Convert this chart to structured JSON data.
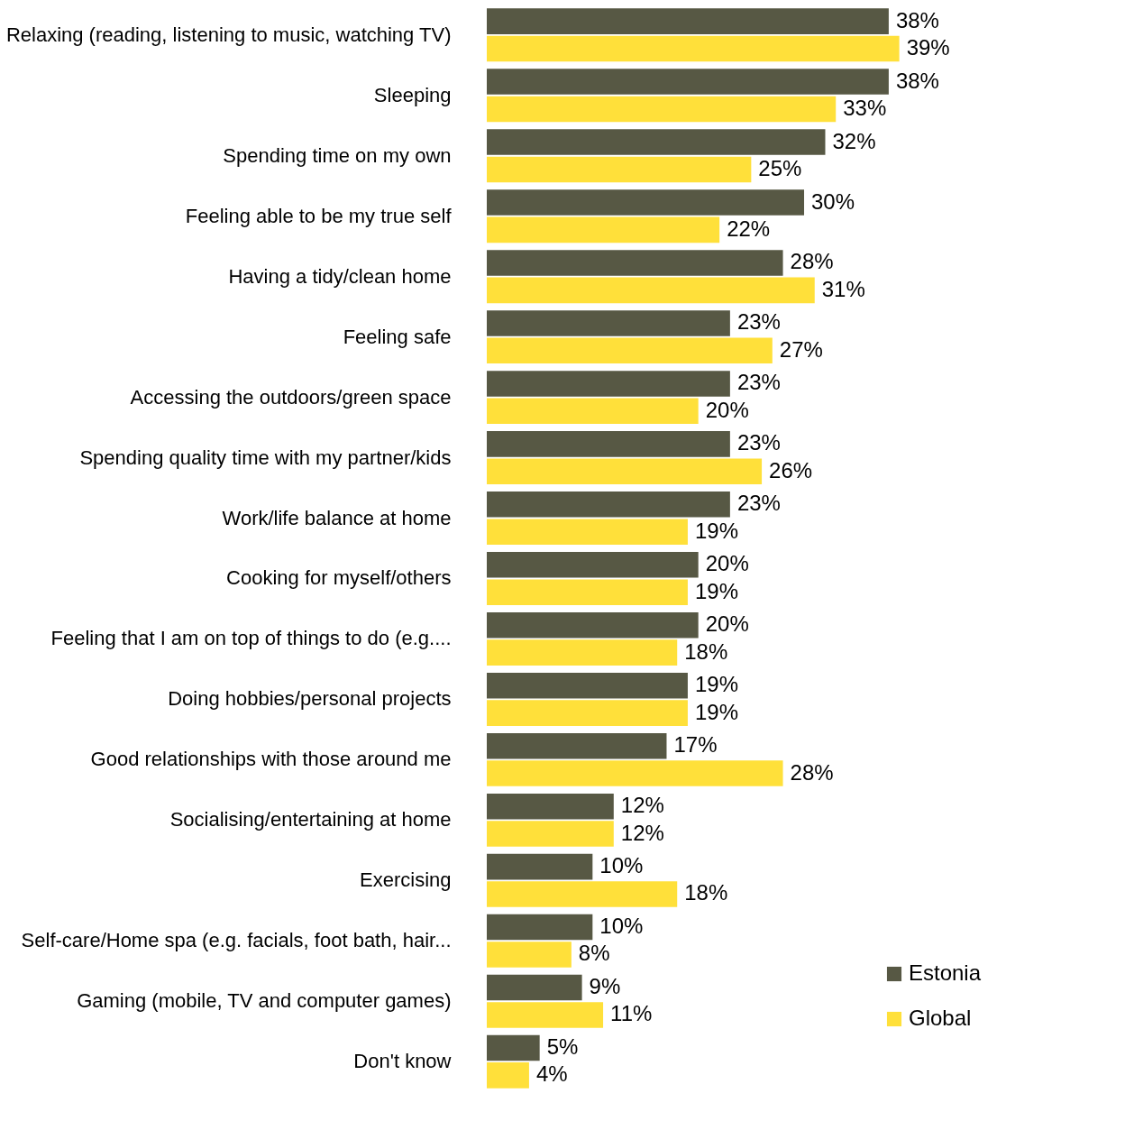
{
  "chart_data": {
    "type": "bar",
    "orientation": "horizontal",
    "legend": "bottom right",
    "grid": false,
    "categories": [
      "Relaxing (reading, listening to music, watching TV)",
      "Sleeping",
      "Spending time on my own",
      "Feeling able to be my true self",
      "Having a tidy/clean home",
      "Feeling safe",
      "Accessing the outdoors/green space",
      "Spending quality time with my partner/kids",
      "Work/life balance at home",
      "Cooking for myself/others",
      "Feeling that I am on top of things to do (e.g....",
      "Doing hobbies/personal projects",
      "Good relationships with those around me",
      "Socialising/entertaining at home",
      "Exercising",
      "Self-care/Home spa (e.g. facials, foot bath, hair...",
      "Gaming (mobile, TV and computer games)",
      "Don't know"
    ],
    "series": [
      {
        "name": "Estonia",
        "color": "#575844",
        "values": [
          38,
          38,
          32,
          30,
          28,
          23,
          23,
          23,
          23,
          20,
          20,
          19,
          17,
          12,
          10,
          10,
          9,
          5
        ],
        "value_labels": [
          "38%",
          "38%",
          "32%",
          "30%",
          "28%",
          "23%",
          "23%",
          "23%",
          "23%",
          "20%",
          "20%",
          "19%",
          "17%",
          "12%",
          "10%",
          "10%",
          "9%",
          "5%"
        ]
      },
      {
        "name": "Global",
        "color": "#ffe03a",
        "values": [
          39,
          33,
          25,
          22,
          31,
          27,
          20,
          26,
          19,
          19,
          18,
          19,
          28,
          12,
          18,
          8,
          11,
          4
        ],
        "value_labels": [
          "39%",
          "33%",
          "25%",
          "22%",
          "31%",
          "27%",
          "20%",
          "26%",
          "19%",
          "19%",
          "18%",
          "19%",
          "28%",
          "12%",
          "18%",
          "8%",
          "11%",
          "4%"
        ]
      }
    ]
  }
}
